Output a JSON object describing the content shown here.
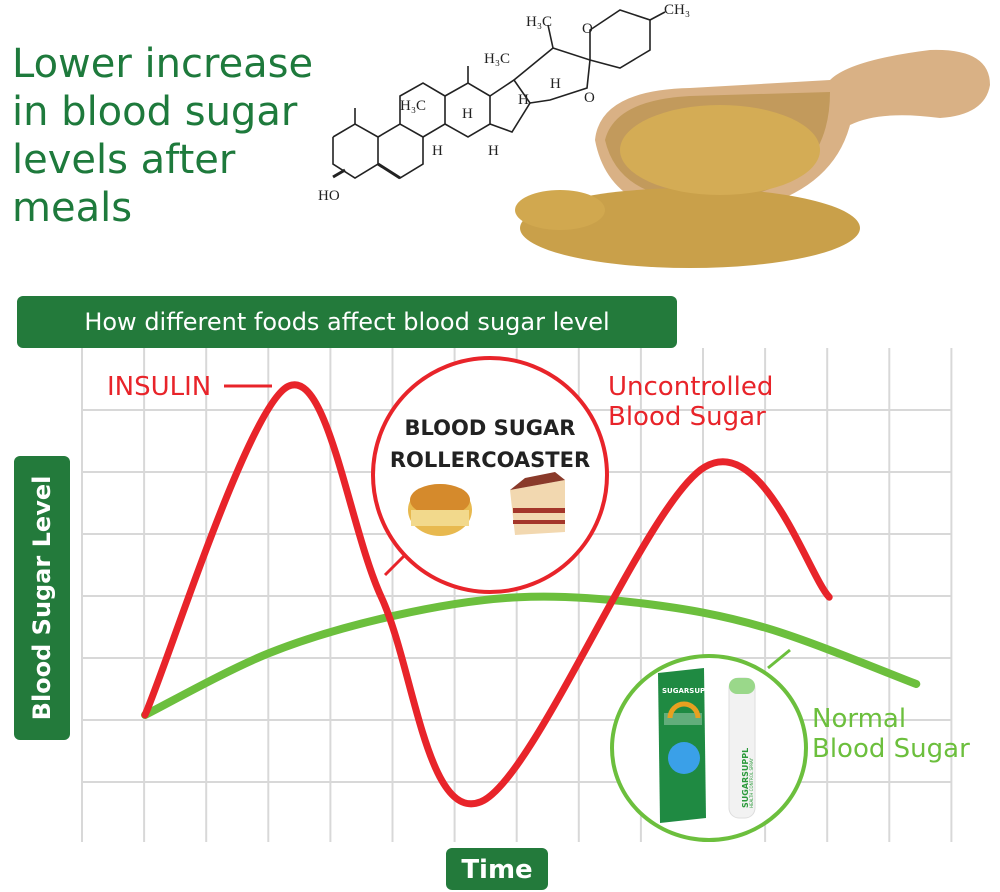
{
  "headline": [
    "Lower increase",
    "in blood sugar",
    "levels after",
    "meals"
  ],
  "molecule": {
    "labels": [
      "H3C",
      "CH3",
      "H3C",
      "H3C",
      "H",
      "H",
      "H",
      "H",
      "H",
      "O",
      "O",
      "HO"
    ]
  },
  "banner": "How different foods affect blood sugar level",
  "colors": {
    "green_dark": "#237a3b",
    "red": "#e8242a",
    "green_light": "#6cbf3d"
  },
  "callout": {
    "insulin": "INSULIN",
    "uncontrolled": [
      "Uncontrolled",
      "Blood Sugar"
    ],
    "normal": [
      "Normal",
      "Blood Sugar"
    ],
    "rollercoaster": [
      "BLOOD SUGAR",
      "ROLLERCOASTER"
    ]
  },
  "product": {
    "brand": "SUGARSUPPL",
    "subtitle": "HEALTH CONTROL SPRAY"
  },
  "chart_data": {
    "type": "line",
    "title": "How different foods affect blood sugar level",
    "xlabel": "Time",
    "ylabel": "Blood Sugar Level",
    "grid": true,
    "x": [
      0,
      1,
      2,
      3,
      4,
      5,
      6,
      7,
      8,
      9,
      10,
      11,
      12
    ],
    "series": [
      {
        "name": "Uncontrolled Blood Sugar",
        "color": "#e8242a",
        "x": [
          0,
          2.3,
          3.8,
          5.4,
          9,
          11
        ],
        "values": [
          2,
          7.3,
          3.9,
          0.6,
          6,
          3.9
        ]
      },
      {
        "name": "Normal Blood Sugar",
        "color": "#6cbf3d",
        "x": [
          0,
          2,
          4,
          6,
          8,
          10,
          12.4
        ],
        "values": [
          2,
          3,
          3.6,
          3.9,
          3.8,
          3.4,
          2.5
        ]
      }
    ],
    "xlim": [
      -1,
      13
    ],
    "ylim": [
      0,
      8
    ]
  }
}
